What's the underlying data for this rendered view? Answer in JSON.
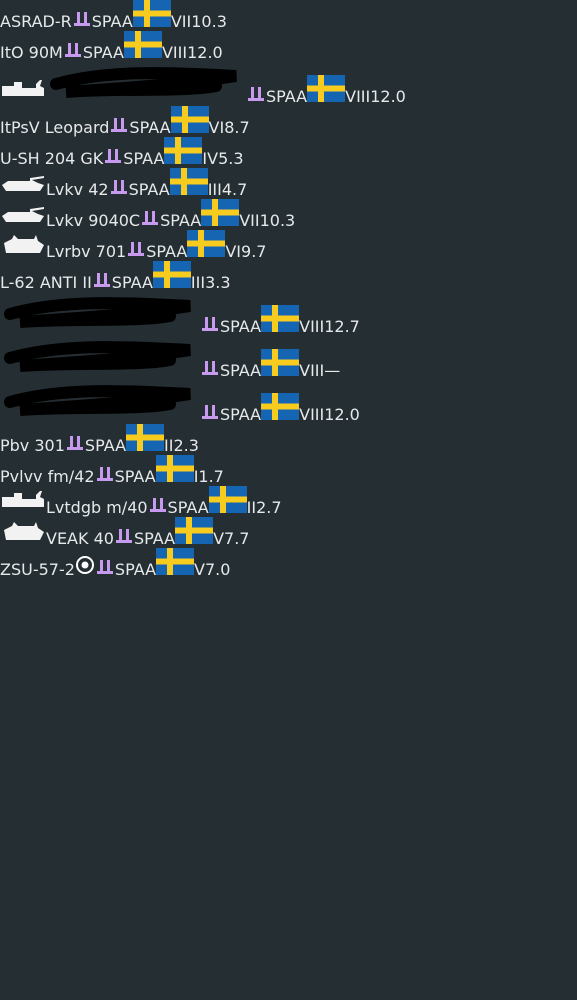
{
  "table": {
    "rows": [
      {
        "name": "ASRAD-R",
        "type": "SPAA",
        "rank": "VII",
        "br": "10.3"
      },
      {
        "name": "ItO 90M",
        "type": "SPAA",
        "rank": "VIII",
        "br": "12.0"
      },
      {
        "type": "SPAA",
        "rank": "VIII",
        "br": "12.0"
      },
      {
        "name": "ItPsV Leopard",
        "type": "SPAA",
        "rank": "VI",
        "br": "8.7"
      },
      {
        "name": "U-SH 204 GK",
        "type": "SPAA",
        "rank": "IV",
        "br": "5.3"
      },
      {
        "name": "Lvkv 42",
        "type": "SPAA",
        "rank": "III",
        "br": "4.7"
      },
      {
        "name": "Lvkv 9040C",
        "type": "SPAA",
        "rank": "VII",
        "br": "10.3"
      },
      {
        "name": "Lvrbv 701",
        "type": "SPAA",
        "rank": "VI",
        "br": "9.7"
      },
      {
        "name": "L-62 ANTI II",
        "type": "SPAA",
        "rank": "III",
        "br": "3.3"
      },
      {
        "type": "SPAA",
        "rank": "VIII",
        "br": "12.7"
      },
      {
        "type": "SPAA",
        "rank": "VIII",
        "br": "—"
      },
      {
        "type": "SPAA",
        "rank": "VIII",
        "br": "12.0"
      },
      {
        "name": "Pbv 301",
        "type": "SPAA",
        "rank": "II",
        "br": "2.3"
      },
      {
        "name": "Pvlvv fm/42",
        "type": "SPAA",
        "rank": "I",
        "br": "1.7"
      },
      {
        "name": "Lvtdgb m/40",
        "type": "SPAA",
        "rank": "II",
        "br": "2.7"
      },
      {
        "name": "VEAK 40",
        "type": "SPAA",
        "rank": "V",
        "br": "7.7"
      },
      {
        "name": "ZSU-57-2",
        "type": "SPAA",
        "rank": "V",
        "br": "7.0"
      }
    ]
  }
}
